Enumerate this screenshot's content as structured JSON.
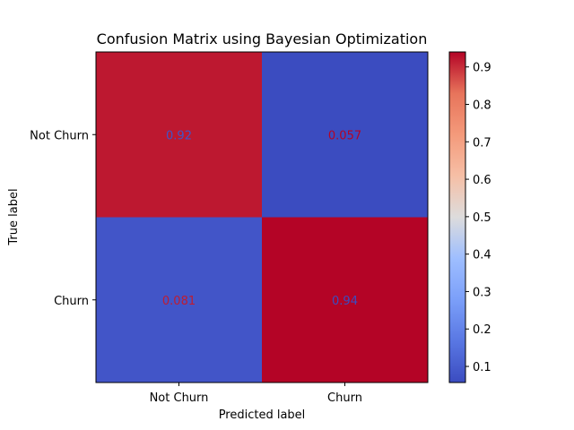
{
  "chart_data": {
    "type": "heatmap",
    "title": "Confusion Matrix using Bayesian Optimization",
    "xlabel": "Predicted label",
    "ylabel": "True label",
    "x_categories": [
      "Not Churn",
      "Churn"
    ],
    "y_categories": [
      "Not Churn",
      "Churn"
    ],
    "values": [
      [
        0.92,
        0.057
      ],
      [
        0.081,
        0.94
      ]
    ],
    "value_labels": [
      [
        "0.92",
        "0.057"
      ],
      [
        "0.081",
        "0.94"
      ]
    ],
    "colormap": "coolwarm",
    "colorbar": {
      "range": [
        0.057,
        0.94
      ],
      "ticks": [
        0.1,
        0.2,
        0.3,
        0.4,
        0.5,
        0.6,
        0.7,
        0.8,
        0.9
      ],
      "tick_labels": [
        "0.1",
        "0.2",
        "0.3",
        "0.4",
        "0.5",
        "0.6",
        "0.7",
        "0.8",
        "0.9"
      ]
    },
    "grid": false
  }
}
